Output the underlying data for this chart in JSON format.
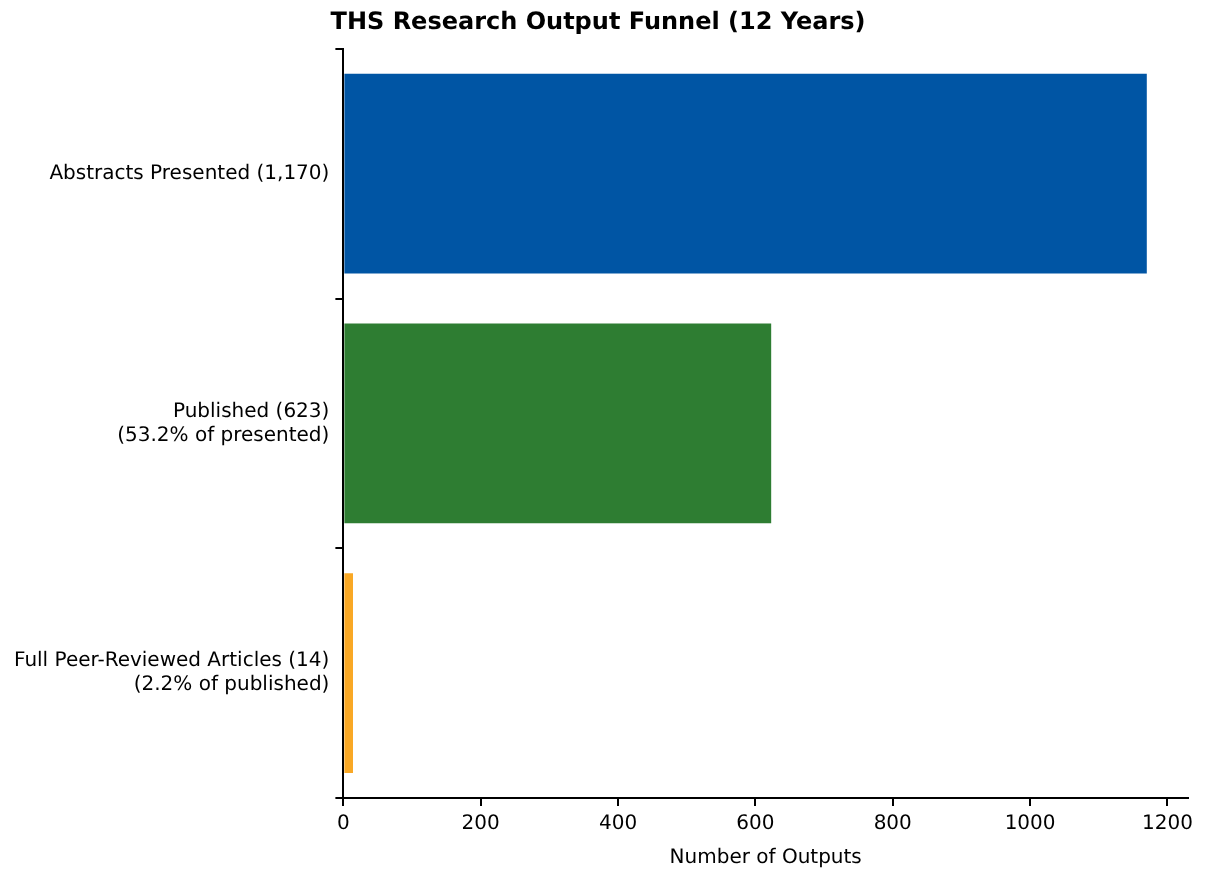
{
  "chart_data": {
    "type": "bar",
    "orientation": "horizontal",
    "title": "THS Research Output Funnel (12 Years)",
    "xlabel": "Number of Outputs",
    "categories": [
      "Abstracts Presented (1,170)",
      "Published (623)\n(53.2% of presented)",
      "Full Peer-Reviewed Articles (14)\n(2.2% of published)"
    ],
    "values": [
      1170,
      623,
      14
    ],
    "colors": [
      "#0055a4",
      "#2e7d32",
      "#f9a825"
    ],
    "xlim": [
      0,
      1230
    ],
    "xticks": [
      0,
      200,
      400,
      600,
      800,
      1000,
      1200
    ],
    "grid": false,
    "legend": false
  }
}
